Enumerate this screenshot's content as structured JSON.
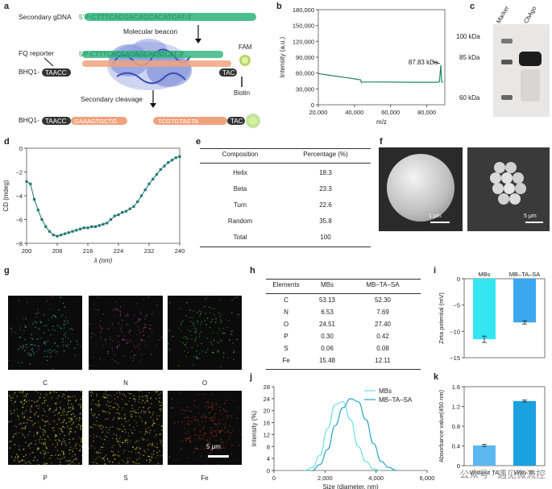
{
  "panels": {
    "a": "a",
    "b": "b",
    "c": "c",
    "d": "d",
    "e": "e",
    "f": "f",
    "g": "g",
    "h": "h",
    "i": "i",
    "j": "j",
    "k": "k"
  },
  "panel_a": {
    "secondary_gdna": "Secondary gDNA",
    "seq_top": "5'P-CTTTCACGACAGCACATCAT-3'",
    "molecular_beacon": "Molecular beacon",
    "seq_mb": "5'P-CTTTCACGACAGCACATCAT-3'",
    "fq_reporter": "FQ reporter",
    "bhq1": "BHQ1-",
    "bhq1_seq": "TAACC",
    "fam": "FAM",
    "biotin": "Biotin",
    "tac": "TAC",
    "secondary_cleavage": "Secondary cleavage",
    "bhq1_bottom": "BHQ1-",
    "bottom_seq_left": "TAACC",
    "bottom_seq_mid": "GAAAGTGCTG",
    "bottom_seq_right": "TCGTGTAGTA",
    "bottom_tac": "TAC"
  },
  "panel_c": {
    "lanes": [
      "Marker",
      "CbAgo"
    ],
    "markers": [
      "100 kDa",
      "85 kDa",
      "60 kDa"
    ],
    "marker_values": [
      100,
      85,
      60
    ]
  },
  "table_e": {
    "headers": [
      "Composition",
      "Percentage (%)"
    ],
    "rows": [
      [
        "Helix",
        "18.3"
      ],
      [
        "Beta",
        "23.3"
      ],
      [
        "Turn",
        "22.6"
      ],
      [
        "Random",
        "35.8"
      ],
      [
        "Total",
        "100"
      ]
    ]
  },
  "panel_f": {
    "scale1": "1 μm",
    "scale2": "5 μm"
  },
  "panel_g": {
    "maps": [
      {
        "label": "C",
        "color": "#3fc6b4"
      },
      {
        "label": "N",
        "color": "#b8479a"
      },
      {
        "label": "O",
        "color": "#49c74a"
      },
      {
        "label": "P",
        "color": "#e6e33a"
      },
      {
        "label": "S",
        "color": "#d6c33a"
      },
      {
        "label": "Fe",
        "color": "#c0392b"
      }
    ],
    "scale": "5 μm"
  },
  "table_h": {
    "headers": [
      "Elements",
      "MBs",
      "MB–TA–SA"
    ],
    "rows": [
      [
        "C",
        "53.13",
        "52.30"
      ],
      [
        "N",
        "6.53",
        "7.69"
      ],
      [
        "O",
        "24.51",
        "27.40"
      ],
      [
        "P",
        "0.30",
        "0.42"
      ],
      [
        "S",
        "0.06",
        "0.08"
      ],
      [
        "Fe",
        "15.48",
        "12.11"
      ]
    ]
  },
  "watermark": "公众号 · 遇见微流控",
  "chart_data": [
    {
      "id": "b",
      "type": "line",
      "xlabel": "m/z",
      "ylabel": "Intensity (a.u.)",
      "xlim": [
        20000,
        90000
      ],
      "ylim": [
        0,
        180000
      ],
      "xticks": [
        "20,000",
        "40,000",
        "60,000",
        "80,000"
      ],
      "yticks": [
        "0",
        "30,000",
        "60,000",
        "90,000",
        "120,000",
        "150,000",
        "180,000"
      ],
      "annotation": "87.83 kDa",
      "points": [
        [
          20000,
          59000
        ],
        [
          21000,
          58500
        ],
        [
          25000,
          56500
        ],
        [
          30000,
          54000
        ],
        [
          35000,
          51500
        ],
        [
          40000,
          49000
        ],
        [
          43500,
          47000
        ],
        [
          43800,
          42000
        ],
        [
          44000,
          43000
        ],
        [
          50000,
          43000
        ],
        [
          60000,
          42800
        ],
        [
          70000,
          42600
        ],
        [
          80000,
          42500
        ],
        [
          86000,
          42500
        ],
        [
          87000,
          44000
        ],
        [
          87830,
          75000
        ],
        [
          88200,
          44000
        ],
        [
          89000,
          42000
        ]
      ]
    },
    {
      "id": "d",
      "type": "line",
      "xlabel": "λ (nm)",
      "ylabel": "CD (mdeg)",
      "xlim": [
        200,
        240
      ],
      "ylim": [
        -8,
        0
      ],
      "xticks": [
        "200",
        "208",
        "216",
        "224",
        "232",
        "240"
      ],
      "yticks": [
        "0",
        "−2",
        "−4",
        "−6",
        "−8"
      ],
      "x": [
        200,
        201,
        202,
        203,
        204,
        205,
        206,
        207,
        208,
        209,
        210,
        211,
        212,
        213,
        214,
        215,
        216,
        217,
        218,
        219,
        220,
        221,
        222,
        223,
        224,
        225,
        226,
        227,
        228,
        229,
        230,
        231,
        232,
        233,
        234,
        235,
        236,
        237,
        238,
        239,
        240
      ],
      "y": [
        -2.8,
        -3.0,
        -4.3,
        -5.2,
        -6.0,
        -6.6,
        -7.0,
        -7.3,
        -7.4,
        -7.3,
        -7.2,
        -7.1,
        -7.0,
        -6.9,
        -6.8,
        -6.7,
        -6.7,
        -6.6,
        -6.6,
        -6.5,
        -6.4,
        -6.3,
        -6.0,
        -5.7,
        -5.6,
        -5.4,
        -5.3,
        -5.1,
        -4.9,
        -4.5,
        -4.0,
        -3.5,
        -3.0,
        -2.6,
        -2.2,
        -1.8,
        -1.5,
        -1.2,
        -1.0,
        -0.8,
        -0.7
      ]
    },
    {
      "id": "i",
      "type": "bar",
      "categories": [
        "MBs",
        "MB–TA–SA"
      ],
      "values": [
        -11.5,
        -8.3
      ],
      "errors": [
        0.6,
        0.3
      ],
      "colors": [
        "#33e6f2",
        "#3aa7ef"
      ],
      "ylabel": "Zeta potential (mV)",
      "ylim": [
        -15,
        0
      ],
      "yticks": [
        "0",
        "−5",
        "−10",
        "−15"
      ]
    },
    {
      "id": "j",
      "type": "line",
      "xlabel": "Size (diameter, nm)",
      "ylabel": "Intensity (%)",
      "xlim": [
        0,
        6000
      ],
      "ylim": [
        0,
        28
      ],
      "xticks": [
        "0",
        "2,000",
        "4,000",
        "6,000"
      ],
      "yticks": [
        "0",
        "4",
        "8",
        "12",
        "16",
        "20",
        "24",
        "28"
      ],
      "series": [
        {
          "name": "MBs",
          "color": "#6de0e6",
          "x": [
            1200,
            1500,
            1800,
            2100,
            2400,
            2700,
            3000,
            3300,
            3600,
            3900,
            4200
          ],
          "y": [
            0,
            1,
            5,
            14,
            22,
            23,
            17,
            8,
            3,
            0.5,
            0
          ]
        },
        {
          "name": "MB–TA–SA",
          "color": "#2aa5c9",
          "x": [
            1500,
            1800,
            2100,
            2400,
            2700,
            3000,
            3300,
            3600,
            3900,
            4200,
            4500,
            4800
          ],
          "y": [
            0,
            2,
            7,
            15,
            21,
            24,
            23,
            17,
            9,
            3,
            1,
            0
          ]
        }
      ]
    },
    {
      "id": "k",
      "type": "bar",
      "categories": [
        "Without TA",
        "With TA"
      ],
      "values": [
        0.41,
        1.31
      ],
      "errors": [
        0.02,
        0.02
      ],
      "colors": [
        "#5bb8f0",
        "#1aa1e0"
      ],
      "ylabel": "Absorbance value(450 nm)",
      "ylim": [
        0,
        1.6
      ],
      "yticks": [
        "0",
        "0.4",
        "0.8",
        "1.2",
        "1.6"
      ]
    }
  ]
}
